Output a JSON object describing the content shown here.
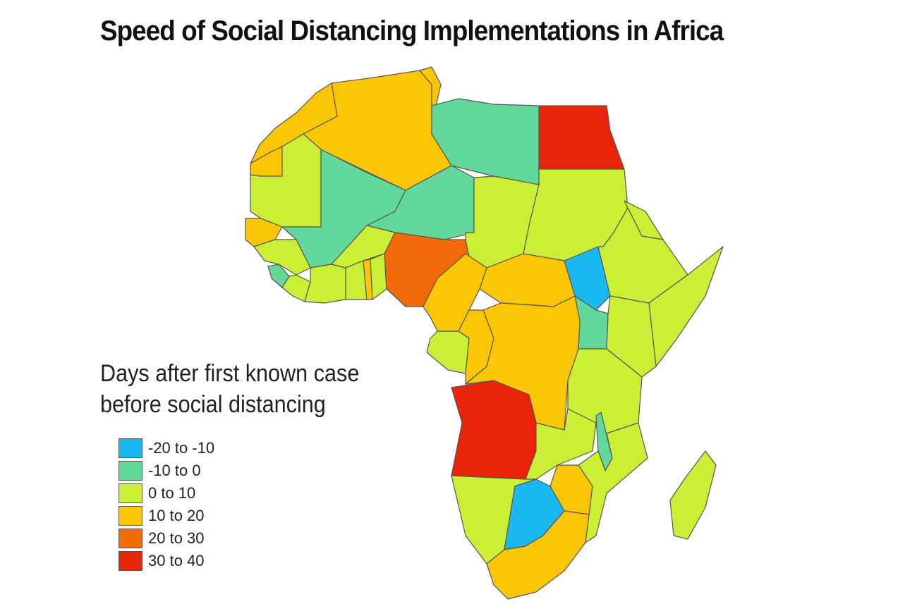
{
  "title": "Speed of Social Distancing Implementations in Africa",
  "legend": {
    "title_line1": "Days after first known case",
    "title_line2": "before social distancing",
    "items": [
      {
        "label": "-20 to -10",
        "color": "#1ab8f0"
      },
      {
        "label": "-10 to 0",
        "color": "#63d89b"
      },
      {
        "label": "0 to 10",
        "color": "#cbef35"
      },
      {
        "label": "10 to 20",
        "color": "#fbc605"
      },
      {
        "label": "20 to 30",
        "color": "#f36a08"
      },
      {
        "label": "30 to 40",
        "color": "#e9240a"
      }
    ]
  },
  "regions": [
    {
      "name": "Morocco",
      "bin": 3
    },
    {
      "name": "Western Sahara",
      "bin": 3
    },
    {
      "name": "Algeria",
      "bin": 3
    },
    {
      "name": "Tunisia",
      "bin": 3
    },
    {
      "name": "Libya",
      "bin": 1
    },
    {
      "name": "Egypt",
      "bin": 5
    },
    {
      "name": "Mauritania",
      "bin": 2
    },
    {
      "name": "Mali",
      "bin": 1
    },
    {
      "name": "Niger",
      "bin": 1
    },
    {
      "name": "Chad",
      "bin": 2
    },
    {
      "name": "Sudan",
      "bin": 2
    },
    {
      "name": "Senegal",
      "bin": 3
    },
    {
      "name": "Guinea",
      "bin": 2
    },
    {
      "name": "Sierra Leone",
      "bin": 1
    },
    {
      "name": "Liberia",
      "bin": 2
    },
    {
      "name": "Cote d'Ivoire",
      "bin": 2
    },
    {
      "name": "Burkina Faso",
      "bin": 2
    },
    {
      "name": "Ghana",
      "bin": 2
    },
    {
      "name": "Togo",
      "bin": 3
    },
    {
      "name": "Benin",
      "bin": 2
    },
    {
      "name": "Nigeria",
      "bin": 4
    },
    {
      "name": "Cameroon",
      "bin": 3
    },
    {
      "name": "Central African Republic",
      "bin": 3
    },
    {
      "name": "South Sudan",
      "bin": 0
    },
    {
      "name": "Ethiopia",
      "bin": 2
    },
    {
      "name": "Eritrea",
      "bin": 2
    },
    {
      "name": "Somalia",
      "bin": 2
    },
    {
      "name": "Kenya",
      "bin": 2
    },
    {
      "name": "Uganda",
      "bin": 1
    },
    {
      "name": "Gabon",
      "bin": 2
    },
    {
      "name": "Congo",
      "bin": 3
    },
    {
      "name": "DR Congo",
      "bin": 3
    },
    {
      "name": "Tanzania",
      "bin": 2
    },
    {
      "name": "Angola",
      "bin": 5
    },
    {
      "name": "Zambia",
      "bin": 2
    },
    {
      "name": "Malawi",
      "bin": 1
    },
    {
      "name": "Mozambique",
      "bin": 2
    },
    {
      "name": "Zimbabwe",
      "bin": 3
    },
    {
      "name": "Namibia",
      "bin": 2
    },
    {
      "name": "Botswana",
      "bin": 0
    },
    {
      "name": "South Africa",
      "bin": 3
    },
    {
      "name": "Madagascar",
      "bin": 2
    }
  ]
}
